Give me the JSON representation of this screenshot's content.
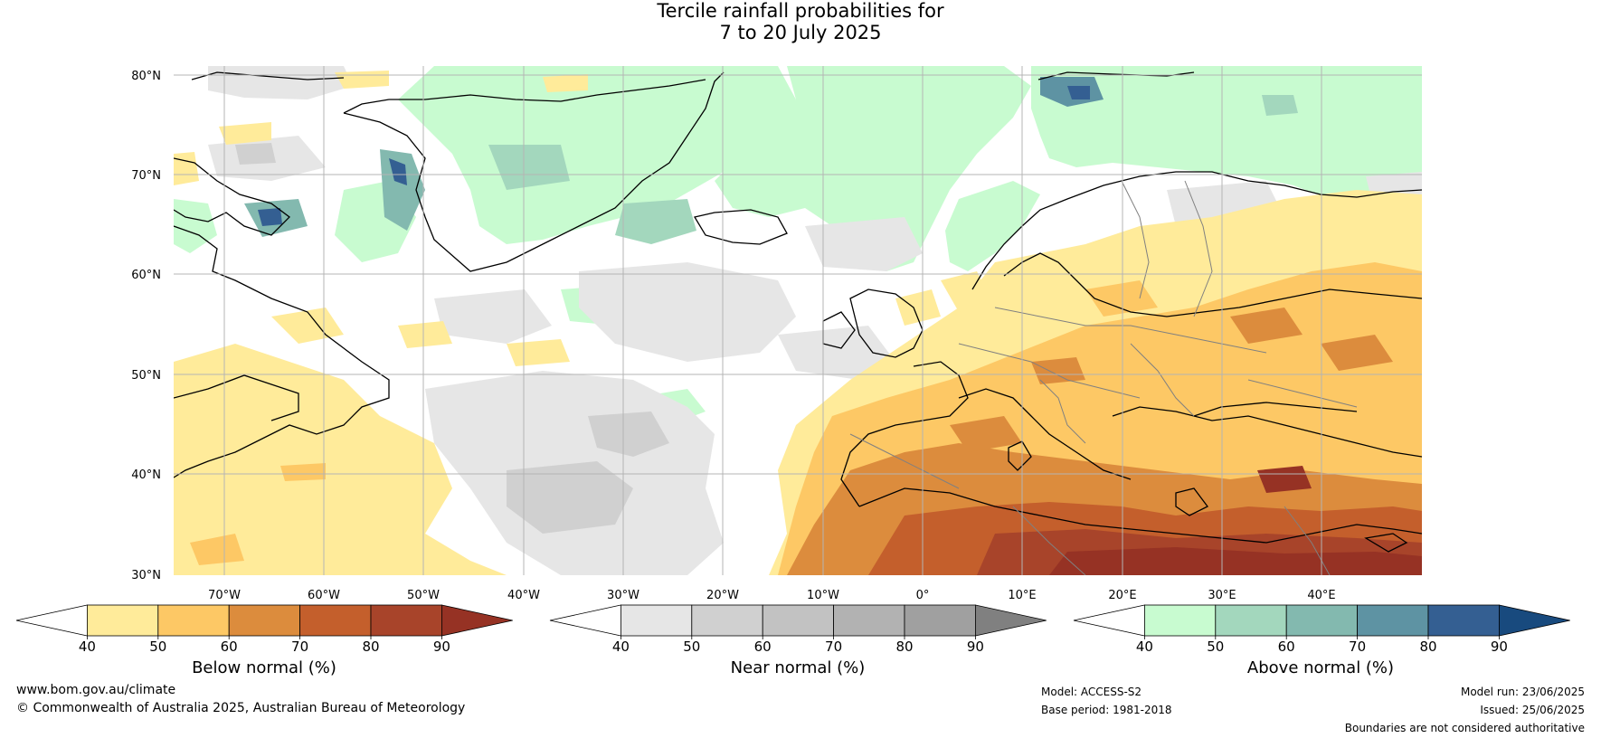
{
  "title": {
    "line1": "Tercile rainfall probabilities for",
    "line2": "7 to 20 July 2025"
  },
  "map": {
    "lat_labels": [
      "80°N",
      "70°N",
      "60°N",
      "50°N",
      "40°N",
      "30°N"
    ],
    "lon_labels": [
      "70°W",
      "60°W",
      "50°W",
      "40°W",
      "30°W",
      "20°W",
      "10°W",
      "0°",
      "10°E",
      "20°E",
      "30°E",
      "40°E"
    ],
    "colors": {
      "ocean": "#ffffff",
      "coastline": "#000000",
      "borders": "#808080",
      "gridlines": "#b4b4b4"
    }
  },
  "colorbars": [
    {
      "id": "below",
      "title": "Below normal (%)",
      "ticks": [
        "40",
        "50",
        "60",
        "70",
        "80",
        "90"
      ],
      "colors": [
        "#ffffff",
        "#ffeb9a",
        "#fdc865",
        "#dc8c3d",
        "#c45f2c",
        "#a8442a",
        "#963224"
      ]
    },
    {
      "id": "near",
      "title": "Near normal (%)",
      "ticks": [
        "40",
        "50",
        "60",
        "70",
        "80",
        "90"
      ],
      "colors": [
        "#ffffff",
        "#e6e6e6",
        "#d0d0d0",
        "#c2c2c2",
        "#b2b2b2",
        "#a0a0a0",
        "#808080"
      ]
    },
    {
      "id": "above",
      "title": "Above normal (%)",
      "ticks": [
        "40",
        "50",
        "60",
        "70",
        "80",
        "90"
      ],
      "colors": [
        "#ffffff",
        "#c8fbd0",
        "#a3d7bd",
        "#83b9af",
        "#5e93a3",
        "#345f92",
        "#184a7e"
      ]
    }
  ],
  "footer": {
    "website": "www.bom.gov.au/climate",
    "copyright": "© Commonwealth of Australia 2025, Australian Bureau of Meteorology",
    "model": "Model: ACCESS-S2",
    "base_period": "Base period: 1981-2018",
    "model_run": "Model run: 23/06/2025",
    "issued": "Issued: 25/06/2025",
    "disclaimer": "Boundaries are not considered authoritative"
  }
}
